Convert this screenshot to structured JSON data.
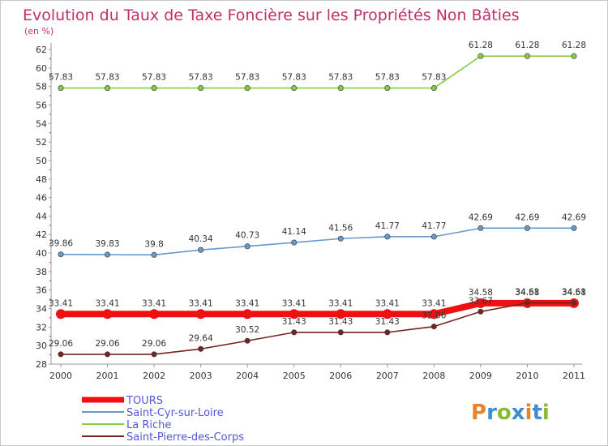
{
  "chart_data": {
    "type": "line",
    "title": "Evolution du Taux de Taxe Foncière sur les Propriétés Non Bâties",
    "subtitle": "(en %)",
    "xlabel": "",
    "ylabel": "",
    "categories": [
      "2000",
      "2001",
      "2002",
      "2003",
      "2004",
      "2005",
      "2006",
      "2007",
      "2008",
      "2009",
      "2010",
      "2011"
    ],
    "ylim": [
      28,
      62
    ],
    "yticks": [
      "28",
      "30",
      "32",
      "34",
      "36",
      "38",
      "40",
      "42",
      "44",
      "46",
      "48",
      "50",
      "52",
      "54",
      "56",
      "58",
      "60",
      "62"
    ],
    "grid": false,
    "legend_position": "bottom-left",
    "series": [
      {
        "name": "La Riche",
        "color": "#88cc44",
        "values": [
          57.83,
          57.83,
          57.83,
          57.83,
          57.83,
          57.83,
          57.83,
          57.83,
          57.83,
          61.28,
          61.28,
          61.28
        ],
        "labels": [
          "57.83",
          "57.83",
          "57.83",
          "57.83",
          "57.83",
          "57.83",
          "57.83",
          "57.83",
          "57.83",
          "61.28",
          "61.28",
          "61.28"
        ]
      },
      {
        "name": "Saint-Cyr-sur-Loire",
        "color": "#6699cc",
        "values": [
          39.86,
          39.83,
          39.8,
          40.34,
          40.73,
          41.14,
          41.56,
          41.77,
          41.77,
          42.69,
          42.69,
          42.69
        ],
        "labels": [
          "39.86",
          "39.83",
          "39.8",
          "40.34",
          "40.73",
          "41.14",
          "41.56",
          "41.77",
          "41.77",
          "42.69",
          "42.69",
          "42.69"
        ]
      },
      {
        "name": "TOURS",
        "color": "#ee1111",
        "values": [
          33.41,
          33.41,
          33.41,
          33.41,
          33.41,
          33.41,
          33.41,
          33.41,
          33.41,
          34.58,
          34.58,
          34.58
        ],
        "labels": [
          "33.41",
          "33.41",
          "33.41",
          "33.41",
          "33.41",
          "33.41",
          "33.41",
          "33.41",
          "33.41",
          "34.58",
          "34.58",
          "34.58"
        ]
      },
      {
        "name": "Saint-Pierre-des-Corps",
        "color": "#772222",
        "values": [
          29.06,
          29.06,
          29.06,
          29.64,
          30.52,
          31.43,
          31.43,
          31.43,
          32.06,
          33.67,
          34.61,
          34.61
        ],
        "labels": [
          "29.06",
          "29.06",
          "29.06",
          "29.64",
          "30.52",
          "31.43",
          "31.43",
          "31.43",
          "32.06",
          "33.67",
          "34.61",
          "34.61"
        ]
      }
    ],
    "legend": [
      {
        "name": "TOURS",
        "color": "#ee1111",
        "thick": true
      },
      {
        "name": "Saint-Cyr-sur-Loire",
        "color": "#6699cc",
        "thick": false
      },
      {
        "name": "La Riche",
        "color": "#88cc44",
        "thick": false
      },
      {
        "name": "Saint-Pierre-des-Corps",
        "color": "#772222",
        "thick": false
      }
    ]
  },
  "logo": {
    "text": "Proxiti",
    "colors": [
      "#e8832a",
      "#3a8fd6",
      "#88bb33",
      "#3a8fd6",
      "#e8832a",
      "#3a8fd6",
      "#88bb33"
    ]
  }
}
